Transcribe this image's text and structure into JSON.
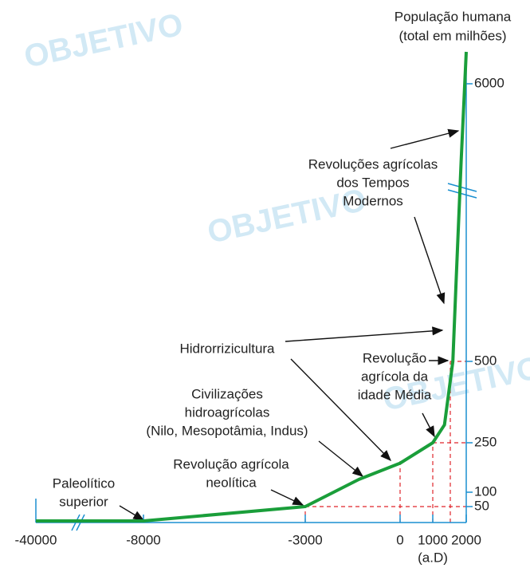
{
  "chart_data": {
    "type": "line",
    "ylabel": [
      "População humana",
      "(total em milhões)"
    ],
    "xlabel": "(a.D)",
    "watermark": "OBJETIVO",
    "x": [
      -40000,
      -8000,
      -3000,
      -1300,
      0,
      1000,
      1350,
      1600,
      1700,
      1850,
      2000
    ],
    "series": [
      {
        "name": "População",
        "color": "#1a9e3a",
        "values": [
          5,
          5,
          50,
          139,
          188,
          250,
          305,
          500,
          2128,
          4499,
          7000
        ]
      }
    ],
    "xlim": [
      -40000,
      2000
    ],
    "xticks": [
      -40000,
      -8000,
      -3000,
      0,
      1000,
      2000
    ],
    "ylim": [
      0,
      7000
    ],
    "yticks": [
      50,
      100,
      250,
      500,
      6000
    ],
    "axis_color": "#1a8fd0",
    "guide_color": "#e0252b",
    "annotations": [
      {
        "lines": [
          "Paleolítico",
          "superior"
        ]
      },
      {
        "lines": [
          "Revolução agrícola",
          "neolítica"
        ]
      },
      {
        "lines": [
          "Civilizações",
          "hidroagrícolas",
          "(Nilo, Mesopotâmia, Indus)"
        ]
      },
      {
        "lines": [
          "Hidrorrizicultura"
        ]
      },
      {
        "lines": [
          "Revolução",
          "agrícola da",
          "idade Média"
        ]
      },
      {
        "lines": [
          "Revoluções agrícolas",
          "dos Tempos",
          "Modernos"
        ]
      }
    ]
  }
}
